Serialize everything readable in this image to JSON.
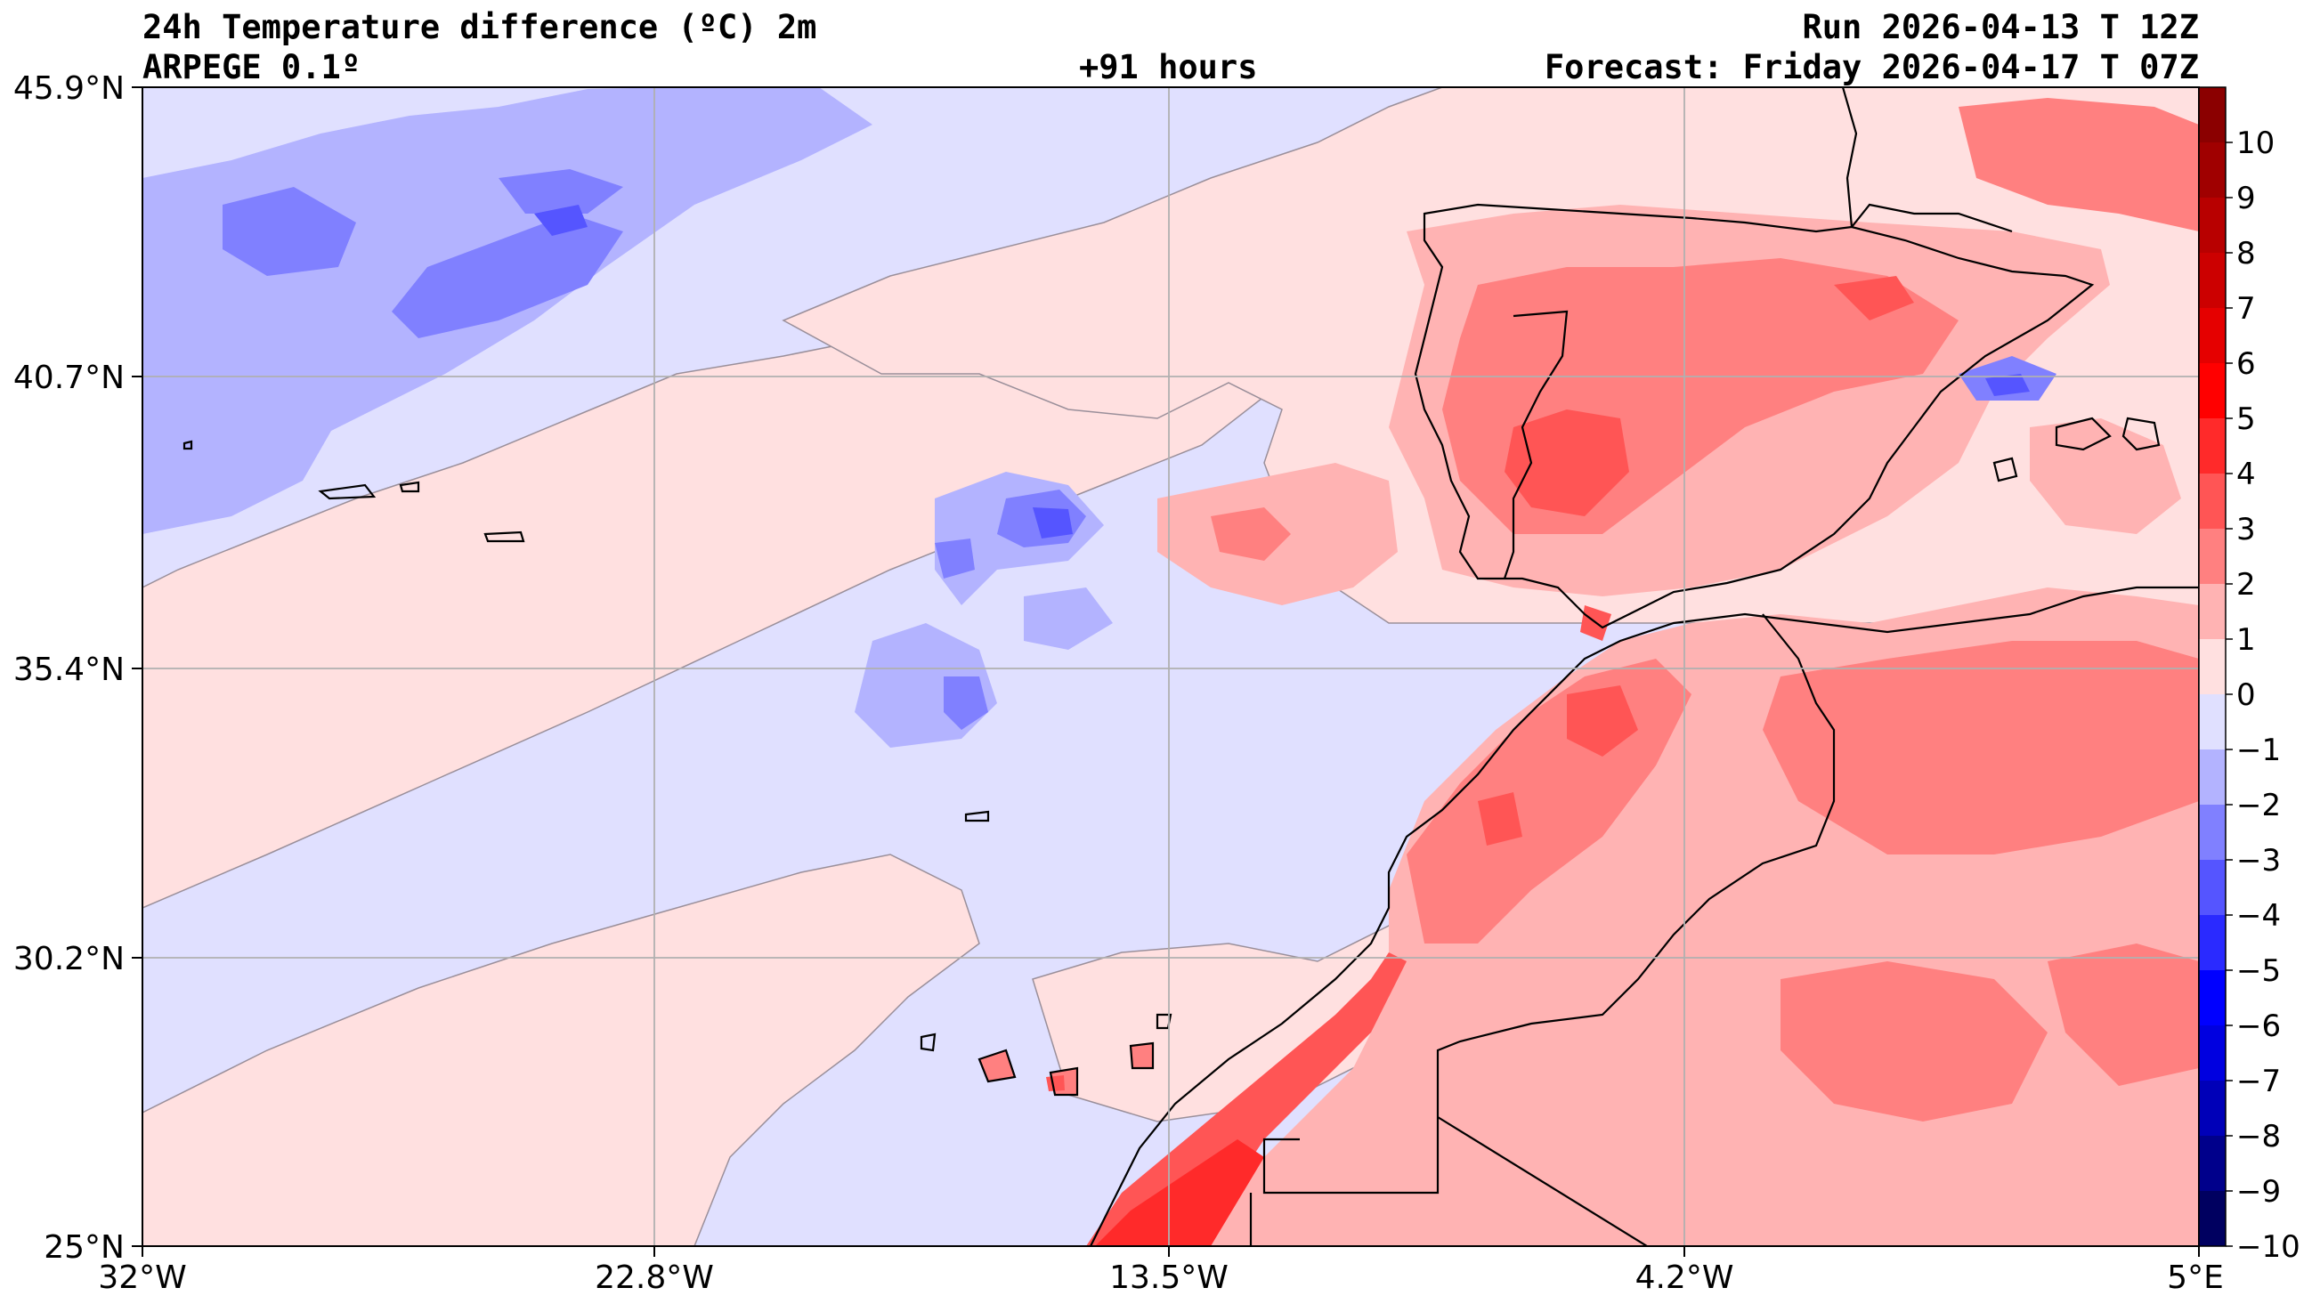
{
  "header": {
    "title": "24h Temperature difference (ºC) 2m",
    "model": "ARPEGE 0.1º",
    "lead_time": "+91 hours",
    "run": "Run 2026-04-13 T 12Z",
    "forecast": "Forecast: Friday 2026-04-17 T 07Z"
  },
  "axes": {
    "lat_labels": [
      "45.9°N",
      "40.7°N",
      "35.4°N",
      "30.2°N",
      "25°N"
    ],
    "lon_labels": [
      "32°W",
      "22.8°W",
      "13.5°W",
      "4.2°W",
      "5°E"
    ]
  },
  "colorbar": {
    "levels": [
      "10",
      "9",
      "8",
      "7",
      "6",
      "5",
      "4",
      "3",
      "2",
      "1",
      "0",
      "−1",
      "−2",
      "−3",
      "−4",
      "−5",
      "−6",
      "−7",
      "−8",
      "−9",
      "−10"
    ],
    "colors": [
      "#8b0000",
      "#a00000",
      "#b80000",
      "#cc0000",
      "#e50000",
      "#ff0000",
      "#ff2a2a",
      "#ff5555",
      "#ff8080",
      "#ffb3b3",
      "#ffe0e0",
      "#e0e0ff",
      "#b3b3ff",
      "#8080ff",
      "#5555ff",
      "#2a2aff",
      "#0000ff",
      "#0000e0",
      "#0000b8",
      "#00008b",
      "#000060"
    ]
  },
  "colors": {
    "ocean_light_pink": "#ffe0e0",
    "light_blue": "#e0e0ff",
    "mid_blue": "#b3b3ff",
    "deep_blue": "#8080ff",
    "pink": "#ffb3b3",
    "red": "#ff8080",
    "deep_red": "#ff5555",
    "strong_red": "#ff2a2a",
    "grid": "#b0b0b0"
  }
}
